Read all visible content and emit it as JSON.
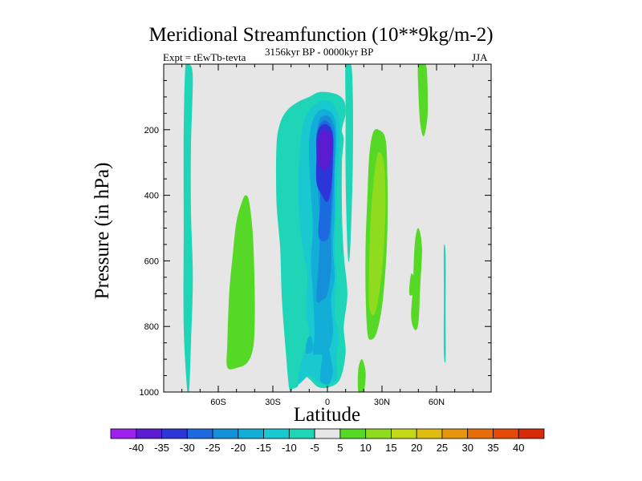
{
  "chart_data": {
    "type": "contour",
    "title": "Meridional Streamfunction (10**9kg/m-2)",
    "subtitle_left": "Expt = tEwTb-tevta",
    "subtitle_center": "3156kyr BP - 0000kyr BP",
    "subtitle_right": "JJA",
    "xlabel": "Latitude",
    "ylabel": "Pressure (in hPa)",
    "xlim": [
      -90,
      90
    ],
    "ylim": [
      1000,
      0
    ],
    "x_ticks": [
      {
        "value": -60,
        "label": "60S"
      },
      {
        "value": -30,
        "label": "30S"
      },
      {
        "value": 0,
        "label": "0"
      },
      {
        "value": 30,
        "label": "30N"
      },
      {
        "value": 60,
        "label": "60N"
      }
    ],
    "y_ticks": [
      {
        "value": 200,
        "label": "200"
      },
      {
        "value": 400,
        "label": "400"
      },
      {
        "value": 600,
        "label": "600"
      },
      {
        "value": 800,
        "label": "800"
      },
      {
        "value": 1000,
        "label": "1000"
      }
    ],
    "background_color": "#e6e6e6",
    "colorbar": {
      "labels": [
        "-40",
        "-35",
        "-30",
        "-25",
        "-20",
        "-15",
        "-10",
        "-5",
        "5",
        "10",
        "15",
        "20",
        "25",
        "30",
        "35",
        "40"
      ],
      "colors": [
        "#a020f0",
        "#5b1bd0",
        "#2c35d8",
        "#1d6ae0",
        "#1590d8",
        "#12aed8",
        "#18c9cf",
        "#1fd5b8",
        "#e6e6e6",
        "#55d826",
        "#8fdc1e",
        "#c2d818",
        "#e0bc10",
        "#e6960c",
        "#e86d0a",
        "#e54a08",
        "#d82a06"
      ]
    },
    "regions": [
      {
        "name": "cyan-90S-band",
        "level": -10,
        "pts": [
          [
            -76,
            1000
          ],
          [
            -75,
            850
          ],
          [
            -74,
            650
          ],
          [
            -75,
            450
          ],
          [
            -75,
            250
          ],
          [
            -74,
            40
          ],
          [
            -76,
            0
          ],
          [
            -78,
            0
          ],
          [
            -79,
            200
          ],
          [
            -79,
            500
          ],
          [
            -79,
            800
          ],
          [
            -77,
            1000
          ]
        ]
      },
      {
        "name": "green-sh-lower",
        "level": 5,
        "pts": [
          [
            -55,
            925
          ],
          [
            -55,
            850
          ],
          [
            -54,
            700
          ],
          [
            -52,
            580
          ],
          [
            -50,
            480
          ],
          [
            -47,
            420
          ],
          [
            -45,
            400
          ],
          [
            -43,
            420
          ],
          [
            -41,
            520
          ],
          [
            -40,
            680
          ],
          [
            -40,
            800
          ],
          [
            -41,
            870
          ],
          [
            -44,
            910
          ],
          [
            -49,
            925
          ]
        ]
      },
      {
        "name": "cyan-main",
        "level": -10,
        "pts": [
          [
            -21,
            990
          ],
          [
            -23,
            870
          ],
          [
            -25,
            720
          ],
          [
            -26,
            560
          ],
          [
            -28,
            420
          ],
          [
            -28,
            250
          ],
          [
            -26,
            180
          ],
          [
            -22,
            140
          ],
          [
            -16,
            115
          ],
          [
            -10,
            100
          ],
          [
            -4,
            85
          ],
          [
            4,
            90
          ],
          [
            9,
            110
          ],
          [
            10,
            150
          ],
          [
            8,
            200
          ],
          [
            9,
            230
          ],
          [
            8,
            300
          ],
          [
            8,
            450
          ],
          [
            9,
            580
          ],
          [
            11,
            700
          ],
          [
            9,
            800
          ],
          [
            10,
            880
          ],
          [
            7,
            960
          ],
          [
            1,
            985
          ],
          [
            -5,
            985
          ],
          [
            -10,
            960
          ],
          [
            -15,
            940
          ],
          [
            -16,
            980
          ],
          [
            -19,
            990
          ]
        ]
      },
      {
        "name": "cyan-upper-nh",
        "level": -10,
        "pts": [
          [
            10,
            0
          ],
          [
            13,
            0
          ],
          [
            14,
            100
          ],
          [
            14,
            300
          ],
          [
            13,
            500
          ],
          [
            12,
            600
          ],
          [
            11,
            560
          ],
          [
            10,
            350
          ],
          [
            10,
            150
          ]
        ]
      },
      {
        "name": "cyan-left-blob",
        "level": -10,
        "pts": [
          [
            -17,
            300
          ],
          [
            -15,
            340
          ],
          [
            -11,
            360
          ],
          [
            -11,
            310
          ],
          [
            -14,
            280
          ]
        ]
      },
      {
        "name": "lightblue-main",
        "level": -15,
        "pts": [
          [
            -16,
            975
          ],
          [
            -15,
            920
          ],
          [
            -12,
            870
          ],
          [
            -10,
            820
          ],
          [
            -12,
            750
          ],
          [
            -11,
            650
          ],
          [
            -13,
            580
          ],
          [
            -15,
            500
          ],
          [
            -16,
            380
          ],
          [
            -15,
            250
          ],
          [
            -13,
            180
          ],
          [
            -10,
            140
          ],
          [
            -6,
            120
          ],
          [
            -3,
            110
          ],
          [
            2,
            115
          ],
          [
            5,
            140
          ],
          [
            7,
            190
          ],
          [
            6,
            300
          ],
          [
            5,
            420
          ],
          [
            4,
            560
          ],
          [
            5,
            650
          ],
          [
            4,
            760
          ],
          [
            6,
            820
          ],
          [
            5,
            900
          ],
          [
            5,
            960
          ],
          [
            0,
            975
          ],
          [
            -5,
            970
          ],
          [
            -10,
            950
          ]
        ]
      },
      {
        "name": "blue-core",
        "level": -20,
        "pts": [
          [
            -8,
            880
          ],
          [
            -7,
            820
          ],
          [
            -8,
            700
          ],
          [
            -9,
            600
          ],
          [
            -8,
            500
          ],
          [
            -9,
            400
          ],
          [
            -10,
            300
          ],
          [
            -10,
            230
          ],
          [
            -8,
            170
          ],
          [
            -4,
            140
          ],
          [
            0,
            140
          ],
          [
            4,
            165
          ],
          [
            5,
            230
          ],
          [
            4,
            330
          ],
          [
            4,
            450
          ],
          [
            3,
            560
          ],
          [
            4,
            650
          ],
          [
            2,
            720
          ],
          [
            3,
            820
          ],
          [
            0,
            880
          ],
          [
            -5,
            885
          ]
        ]
      },
      {
        "name": "blue-deep",
        "level": -25,
        "pts": [
          [
            -6,
            720
          ],
          [
            -5,
            620
          ],
          [
            -4,
            500
          ],
          [
            -5,
            400
          ],
          [
            -6,
            300
          ],
          [
            -6,
            230
          ],
          [
            -5,
            180
          ],
          [
            -3,
            160
          ],
          [
            1,
            160
          ],
          [
            4,
            200
          ],
          [
            4,
            300
          ],
          [
            3,
            420
          ],
          [
            2,
            520
          ],
          [
            2,
            620
          ],
          [
            0,
            700
          ],
          [
            -3,
            720
          ]
        ]
      },
      {
        "name": "blue-deeper",
        "level": -30,
        "pts": [
          [
            -5,
            520
          ],
          [
            -4,
            430
          ],
          [
            -4,
            340
          ],
          [
            -5,
            260
          ],
          [
            -5,
            200
          ],
          [
            -3,
            175
          ],
          [
            0,
            175
          ],
          [
            3,
            210
          ],
          [
            3,
            320
          ],
          [
            2,
            440
          ],
          [
            1,
            520
          ],
          [
            -2,
            540
          ]
        ]
      },
      {
        "name": "indigo",
        "level": -35,
        "pts": [
          [
            -6,
            360
          ],
          [
            -6,
            280
          ],
          [
            -6,
            220
          ],
          [
            -4,
            190
          ],
          [
            0,
            185
          ],
          [
            3,
            215
          ],
          [
            3,
            290
          ],
          [
            2,
            380
          ],
          [
            0,
            420
          ],
          [
            -3,
            400
          ]
        ]
      },
      {
        "name": "purple",
        "level": -40,
        "pts": [
          [
            -5,
            300
          ],
          [
            -5,
            240
          ],
          [
            -4,
            210
          ],
          [
            -1,
            200
          ],
          [
            2,
            220
          ],
          [
            2,
            280
          ],
          [
            0,
            320
          ],
          [
            -3,
            320
          ]
        ]
      },
      {
        "name": "lower-blue-1",
        "level": -20,
        "pts": [
          [
            -4,
            960
          ],
          [
            -3,
            900
          ],
          [
            -2,
            850
          ],
          [
            0,
            850
          ],
          [
            2,
            900
          ],
          [
            3,
            940
          ],
          [
            1,
            975
          ],
          [
            -2,
            975
          ]
        ]
      },
      {
        "name": "lower-blue-2",
        "level": -20,
        "pts": [
          [
            -12,
            880
          ],
          [
            -11,
            840
          ],
          [
            -9,
            830
          ],
          [
            -8,
            860
          ],
          [
            -9,
            880
          ]
        ]
      },
      {
        "name": "green-nh-middle",
        "level": 5,
        "pts": [
          [
            22,
            820
          ],
          [
            21,
            700
          ],
          [
            21,
            550
          ],
          [
            22,
            400
          ],
          [
            23,
            280
          ],
          [
            25,
            210
          ],
          [
            28,
            200
          ],
          [
            32,
            230
          ],
          [
            33,
            350
          ],
          [
            33,
            500
          ],
          [
            32,
            620
          ],
          [
            30,
            740
          ],
          [
            27,
            820
          ],
          [
            24,
            840
          ]
        ]
      },
      {
        "name": "lime-nh-middle",
        "level": 10,
        "pts": [
          [
            23,
            740
          ],
          [
            23,
            600
          ],
          [
            24,
            450
          ],
          [
            26,
            330
          ],
          [
            28,
            270
          ],
          [
            31,
            300
          ],
          [
            32,
            420
          ],
          [
            31,
            560
          ],
          [
            29,
            680
          ],
          [
            26,
            760
          ]
        ]
      },
      {
        "name": "green-nh-upper",
        "level": 5,
        "pts": [
          [
            50,
            0
          ],
          [
            50,
            80
          ],
          [
            51,
            180
          ],
          [
            53,
            220
          ],
          [
            55,
            160
          ],
          [
            55,
            60
          ],
          [
            54,
            0
          ]
        ]
      },
      {
        "name": "green-60n",
        "level": 5,
        "pts": [
          [
            46,
            770
          ],
          [
            47,
            680
          ],
          [
            48,
            550
          ],
          [
            50,
            500
          ],
          [
            52,
            560
          ],
          [
            51,
            680
          ],
          [
            50,
            790
          ],
          [
            48,
            810
          ]
        ]
      },
      {
        "name": "green-60n-bottom",
        "level": 5,
        "pts": [
          [
            45,
            700
          ],
          [
            46,
            640
          ],
          [
            48,
            660
          ],
          [
            47,
            700
          ]
        ]
      },
      {
        "name": "cyan-nh-edge",
        "level": -10,
        "pts": [
          [
            64,
            880
          ],
          [
            64,
            700
          ],
          [
            64,
            560
          ],
          [
            65,
            580
          ],
          [
            65,
            760
          ],
          [
            65,
            900
          ]
        ]
      },
      {
        "name": "green-20n-lower",
        "level": 5,
        "pts": [
          [
            17,
            1000
          ],
          [
            17,
            930
          ],
          [
            19,
            900
          ],
          [
            21,
            940
          ],
          [
            20,
            1000
          ]
        ]
      }
    ]
  }
}
